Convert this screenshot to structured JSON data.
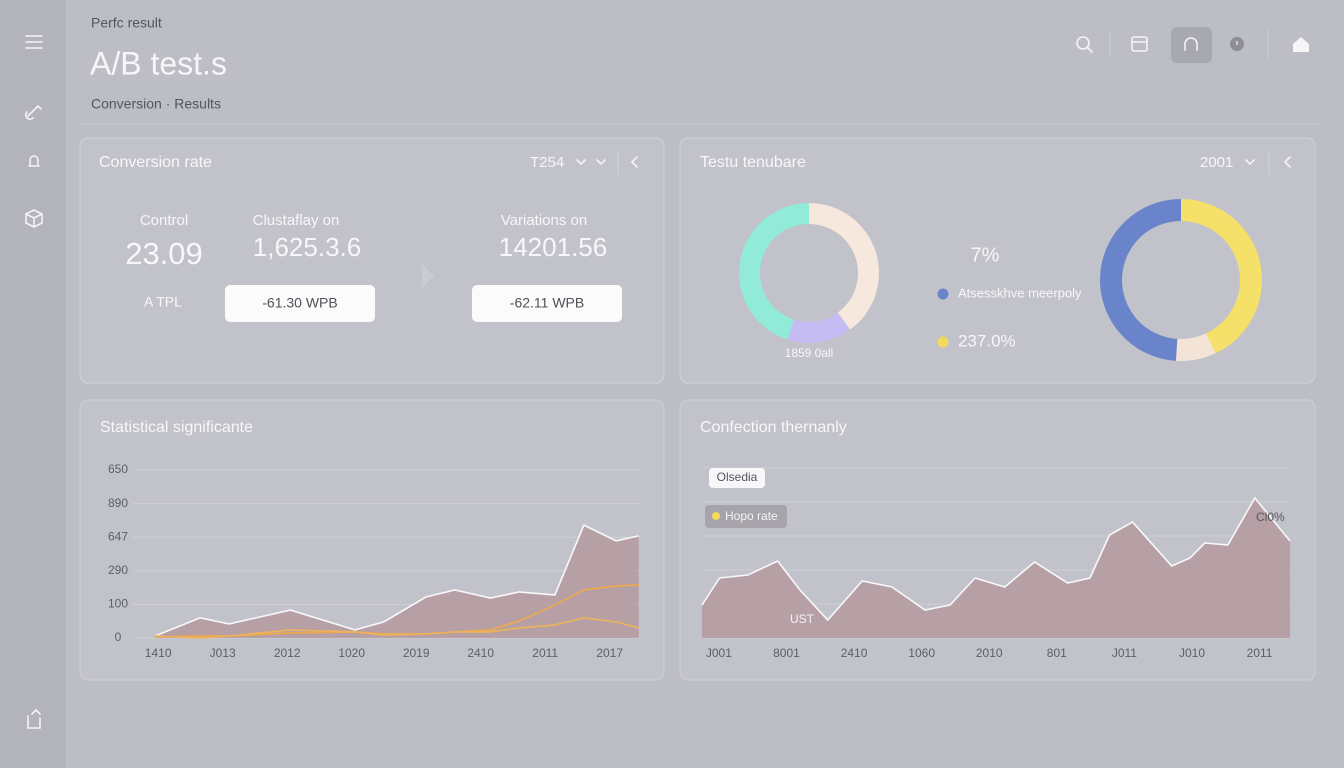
{
  "header": {
    "eyebrow": "Perfc result",
    "title": "A/B test.s",
    "subtitle": "Conversion · Results"
  },
  "panels": [
    {
      "title": "Conversion rate",
      "selector": "T254",
      "stats": [
        {
          "label": "Control",
          "value": "23.09",
          "note": "A TPL"
        },
        {
          "label": "Clustaflay on",
          "value": "1,625.3.6",
          "button": "-61.30 WPB"
        },
        {
          "label": "Variations on",
          "value": "14201.56",
          "button": "-62.11 WPB"
        }
      ]
    },
    {
      "title": "Testu tenubare",
      "selector": "2001",
      "summary": "7%",
      "legend": [
        {
          "name": "Atsesskhve meerpoly",
          "color": "#6a84cc"
        },
        {
          "name": "237.0%",
          "color": "#f4d95c"
        }
      ]
    },
    {
      "title": "Statistical significante"
    },
    {
      "title": "Confection thernanly"
    }
  ],
  "chart_data": [
    {
      "type": "donut",
      "caption": "1859 0all",
      "values": [
        40,
        15,
        45
      ],
      "colors": [
        "#f6e8dc",
        "#c4bcf2",
        "#92ead9"
      ]
    },
    {
      "type": "donut",
      "values": [
        43,
        8,
        49
      ],
      "colors": [
        "#f5e06a",
        "#f4e4d8",
        "#6a84cc"
      ]
    },
    {
      "type": "area",
      "x": [
        -0.05,
        0.65,
        1.1,
        2.05,
        3.05,
        3.5,
        4.15,
        4.6,
        5.15,
        5.6,
        6.15,
        6.6,
        7.1,
        7.45
      ],
      "xlim": [
        -0.39,
        7.47
      ],
      "xticks": [
        {
          "value": 0,
          "label": "1410"
        },
        {
          "value": 1,
          "label": "J013"
        },
        {
          "value": 2,
          "label": "2012"
        },
        {
          "value": 3,
          "label": "1020"
        },
        {
          "value": 4,
          "label": "2019"
        },
        {
          "value": 5,
          "label": "2410"
        },
        {
          "value": 6,
          "label": "2011"
        },
        {
          "value": 7,
          "label": "2017"
        }
      ],
      "ylim": [
        0,
        5
      ],
      "yticks": [
        0,
        {
          "value": 1,
          "label": "100"
        },
        {
          "value": 2,
          "label": "290"
        },
        {
          "value": 3,
          "label": "647"
        },
        {
          "value": 4,
          "label": "890"
        },
        {
          "value": 5,
          "label": "650"
        }
      ],
      "grid": true,
      "series": [
        {
          "color": "#b39498",
          "fill": true,
          "values": [
            0.06,
            0.6,
            0.42,
            0.83,
            0.24,
            0.48,
            1.22,
            1.43,
            1.19,
            1.37,
            1.28,
            3.36,
            2.89,
            3.04
          ]
        },
        {
          "color": "#f0a94a",
          "fill": false,
          "values": [
            0.03,
            0.06,
            0.06,
            0.15,
            0.18,
            0.12,
            0.12,
            0.18,
            0.24,
            0.51,
            0.98,
            1.43,
            1.55,
            1.58
          ]
        },
        {
          "color": "#eeb257",
          "fill": false,
          "values": [
            0.06,
            0,
            0.06,
            0.24,
            0.18,
            0.09,
            0.12,
            0.18,
            0.18,
            0.3,
            0.39,
            0.6,
            0.48,
            0.3
          ]
        }
      ]
    },
    {
      "type": "area",
      "x": [
        -0.25,
        0.01,
        0.43,
        0.87,
        1.2,
        1.61,
        2.12,
        2.56,
        3.05,
        3.42,
        3.79,
        4.23,
        4.67,
        5.16,
        5.49,
        5.78,
        6.12,
        6.7,
        6.97,
        7.19,
        7.53,
        7.93,
        8.45
      ],
      "xlim": [
        -0.25,
        8.45
      ],
      "xticks": [
        {
          "value": 0,
          "label": "J001"
        },
        {
          "value": 1,
          "label": "8001"
        },
        {
          "value": 2,
          "label": "2410"
        },
        {
          "value": 3,
          "label": "1060"
        },
        {
          "value": 4,
          "label": "2010"
        },
        {
          "value": 5,
          "label": "801"
        },
        {
          "value": 6,
          "label": "J011"
        },
        {
          "value": 7,
          "label": "J010"
        },
        {
          "value": 8,
          "label": "2011"
        }
      ],
      "ylim": [
        0,
        170
      ],
      "annotations": [
        "Olsedia",
        "Hopo rate",
        "UST",
        "Cl0%"
      ],
      "series": [
        {
          "color": "#b39498",
          "fill": true,
          "values": [
            33,
            60,
            63,
            77,
            48,
            18,
            57,
            51,
            28,
            33,
            60,
            51,
            76,
            55,
            60,
            103,
            116,
            72,
            80,
            95,
            93,
            140,
            97
          ]
        }
      ]
    }
  ]
}
